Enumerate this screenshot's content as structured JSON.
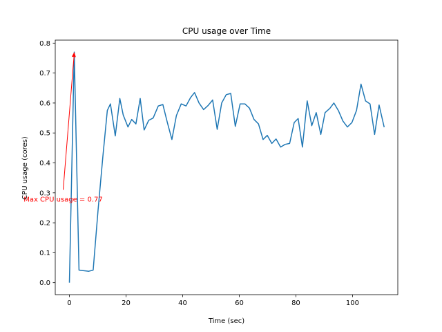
{
  "chart_data": {
    "type": "line",
    "title": "CPU usage over Time",
    "xlabel": "Time (sec)",
    "ylabel": "CPU usage (cores)",
    "xlim": [
      -5,
      116
    ],
    "ylim": [
      -0.04,
      0.81
    ],
    "xticks": [
      0,
      20,
      40,
      60,
      80,
      100
    ],
    "yticks": [
      0.0,
      0.1,
      0.2,
      0.3,
      0.4,
      0.5,
      0.6,
      0.7,
      0.8
    ],
    "xtick_labels": [
      "0",
      "20",
      "40",
      "60",
      "80",
      "100"
    ],
    "ytick_labels": [
      "0.0",
      "0.1",
      "0.2",
      "0.3",
      "0.4",
      "0.5",
      "0.6",
      "0.7",
      "0.8"
    ],
    "grid": false,
    "series": [
      {
        "name": "CPU usage",
        "color": "#1f77b4",
        "x": [
          0,
          1.7,
          3.4,
          5.1,
          6.8,
          8.4,
          10.1,
          11.8,
          13.4,
          14.5,
          16.2,
          17.8,
          19.0,
          20.7,
          22.0,
          23.5,
          25.0,
          26.4,
          28.0,
          29.6,
          31.4,
          33.0,
          34.6,
          36.2,
          37.8,
          39.5,
          41.2,
          42.8,
          44.2,
          45.8,
          47.4,
          49.0,
          50.6,
          52.2,
          53.8,
          55.4,
          57.0,
          58.6,
          60.3,
          62.0,
          63.6,
          65.2,
          66.8,
          68.4,
          69.9,
          71.5,
          73.0,
          74.6,
          76.2,
          77.8,
          79.4,
          80.8,
          82.3,
          84.0,
          85.6,
          87.2,
          88.8,
          90.3,
          92.0,
          93.4,
          95.0,
          96.6,
          98.2,
          99.8,
          101.4,
          103.0,
          104.6,
          106.2,
          107.8,
          109.4,
          111.2
        ],
        "y": [
          0.0,
          0.77,
          0.042,
          0.04,
          0.038,
          0.042,
          0.24,
          0.42,
          0.575,
          0.597,
          0.49,
          0.615,
          0.56,
          0.52,
          0.545,
          0.53,
          0.615,
          0.51,
          0.542,
          0.55,
          0.59,
          0.595,
          0.535,
          0.478,
          0.558,
          0.597,
          0.59,
          0.618,
          0.635,
          0.6,
          0.578,
          0.592,
          0.61,
          0.512,
          0.6,
          0.628,
          0.632,
          0.522,
          0.597,
          0.597,
          0.583,
          0.545,
          0.53,
          0.478,
          0.492,
          0.465,
          0.48,
          0.453,
          0.462,
          0.465,
          0.535,
          0.548,
          0.453,
          0.607,
          0.524,
          0.568,
          0.495,
          0.568,
          0.582,
          0.6,
          0.575,
          0.54,
          0.52,
          0.535,
          0.575,
          0.663,
          0.607,
          0.597,
          0.495,
          0.593,
          0.519
        ]
      }
    ],
    "annotations": [
      {
        "text": "Max CPU usage = 0.77",
        "color": "#ff0000",
        "text_x": -2.2,
        "text_y": 0.31,
        "arrow_to_x": 1.7,
        "arrow_to_y": 0.77
      }
    ]
  }
}
